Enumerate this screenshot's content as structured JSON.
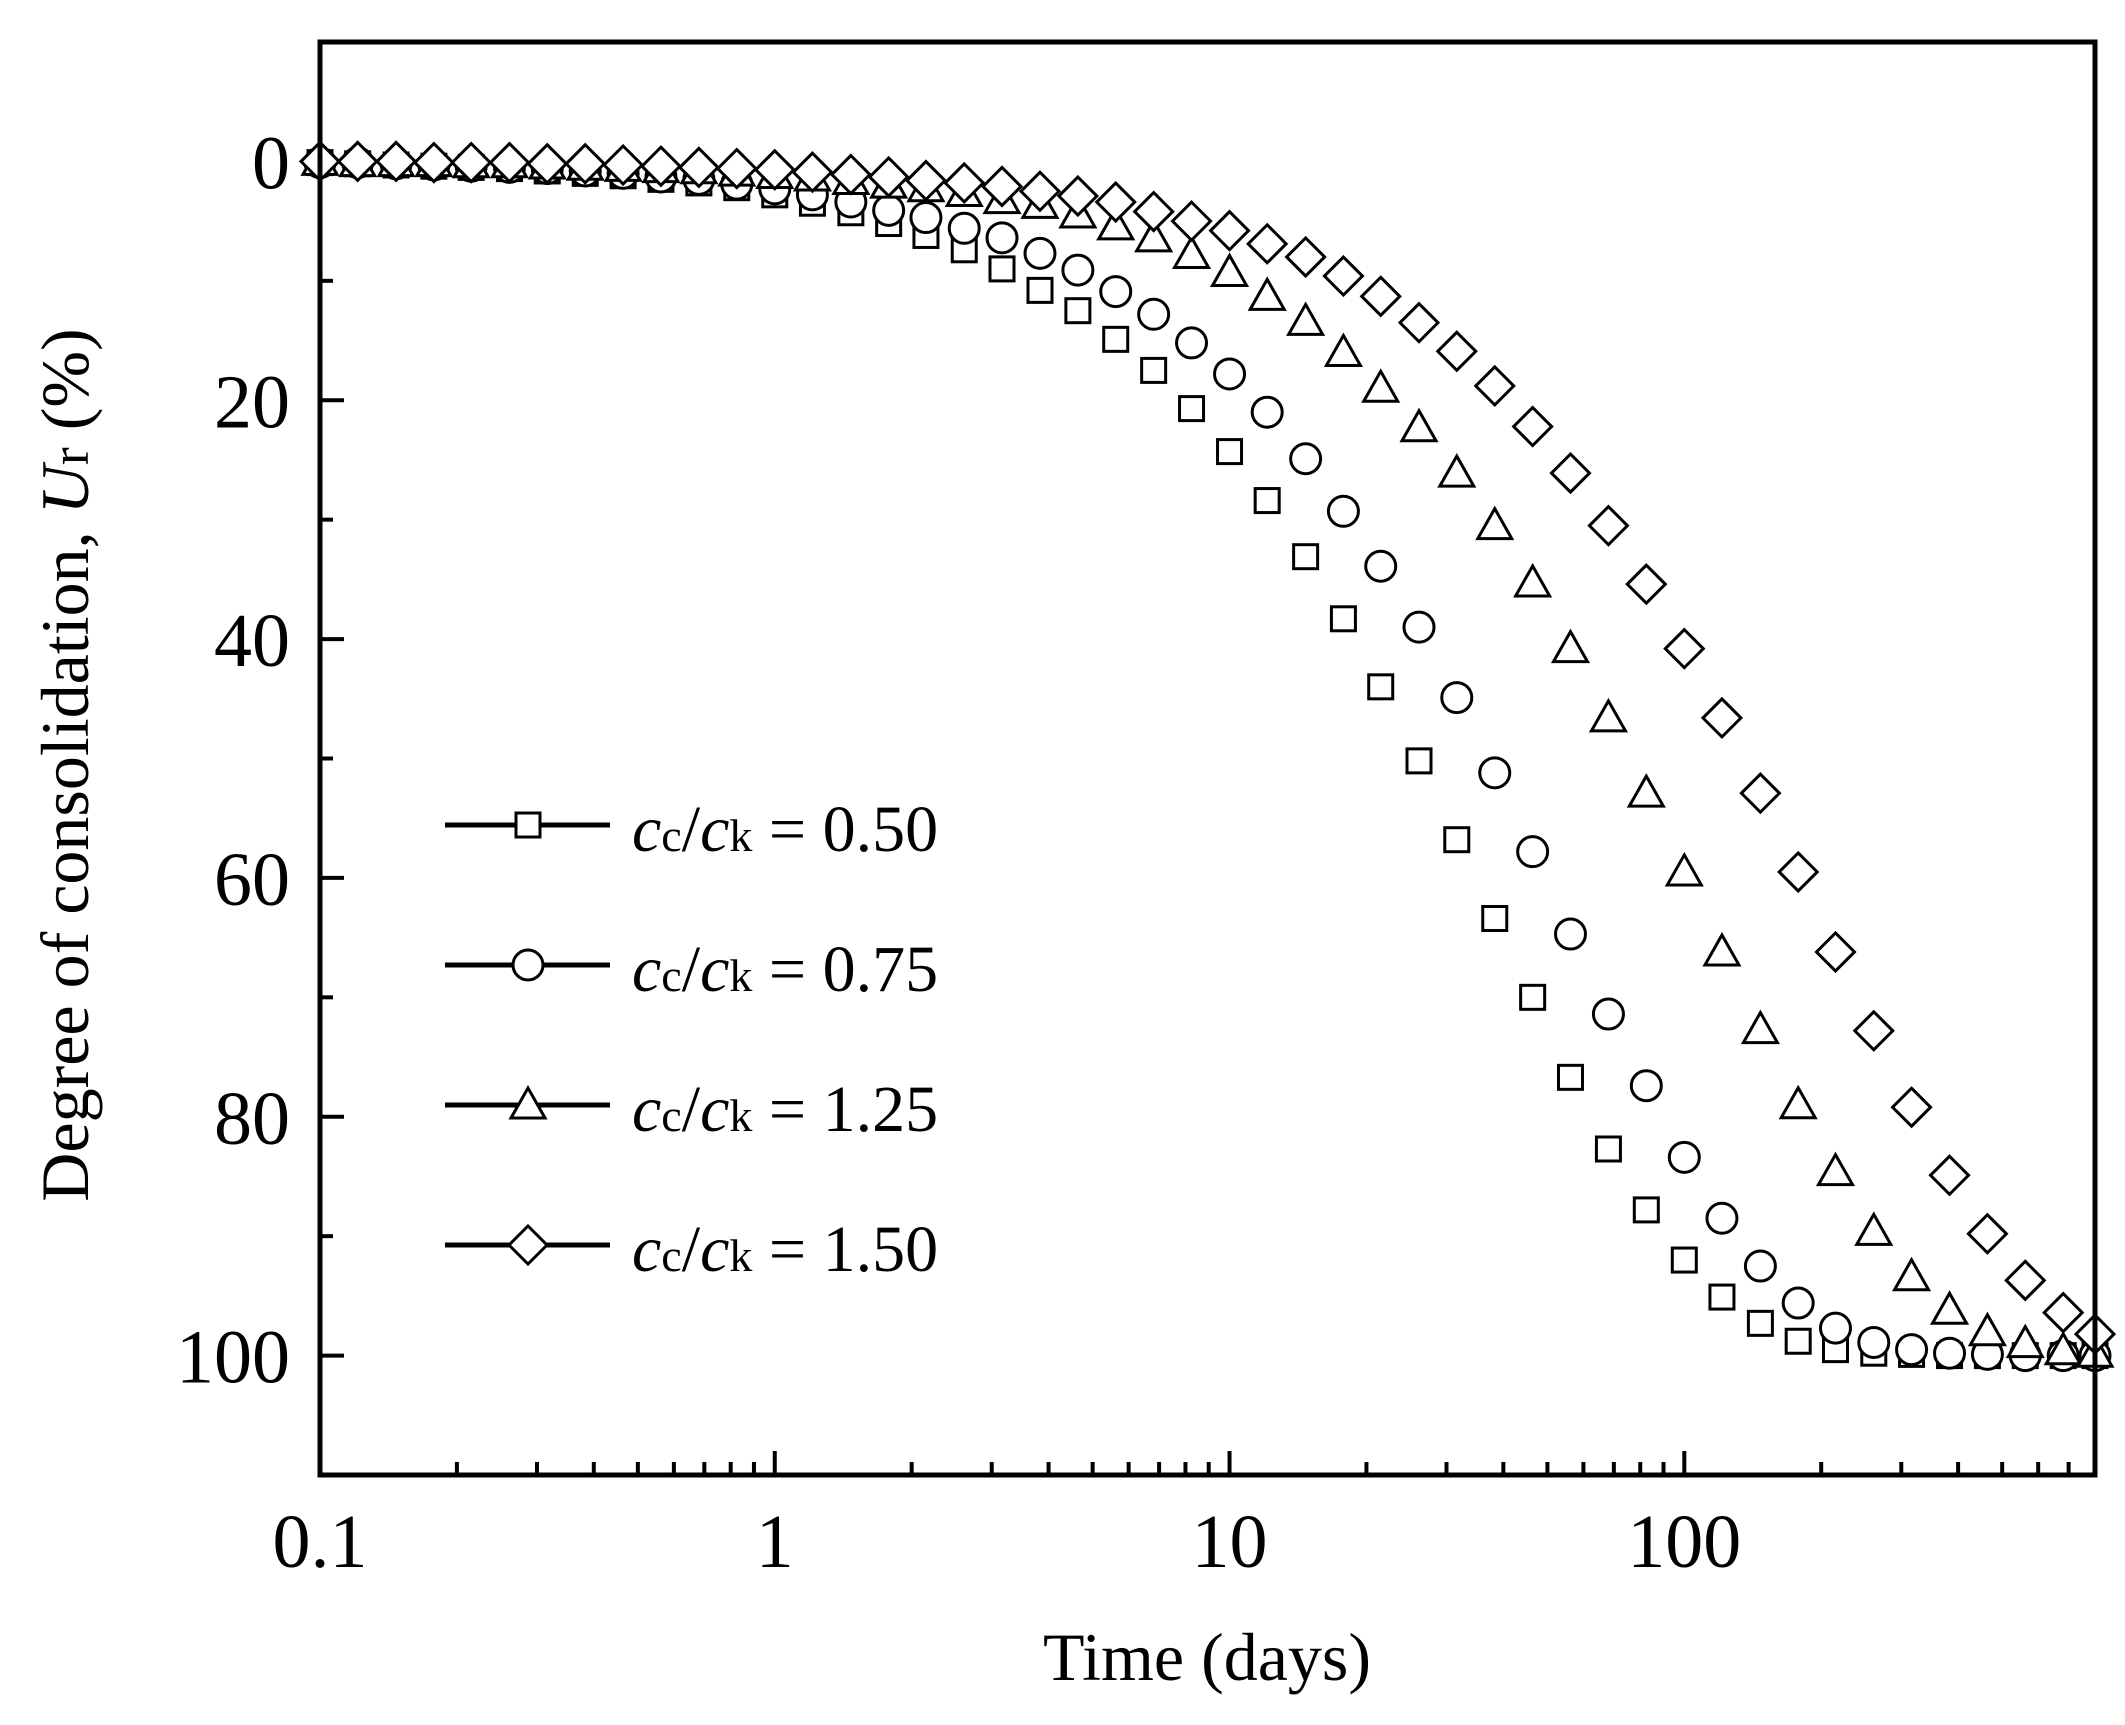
{
  "chart_data": {
    "type": "scatter",
    "title": "",
    "xlabel": "Time (days)",
    "ylabel": {
      "prefix": "Degree of  consolidation, ",
      "italic": "U",
      "sub": "r",
      "suffix": " (%)"
    },
    "xscale": "log",
    "xlim": [
      0.1,
      800
    ],
    "ylim": [
      110,
      -10
    ],
    "y_reversed": true,
    "xticks": [
      {
        "value": 0.1,
        "label": "0.1"
      },
      {
        "value": 1,
        "label": "1"
      },
      {
        "value": 10,
        "label": "10"
      },
      {
        "value": 100,
        "label": "100"
      }
    ],
    "yticks": [
      {
        "value": 0,
        "label": "0"
      },
      {
        "value": 20,
        "label": "20"
      },
      {
        "value": 40,
        "label": "40"
      },
      {
        "value": 60,
        "label": "60"
      },
      {
        "value": 80,
        "label": "80"
      },
      {
        "value": 100,
        "label": "100"
      }
    ],
    "legend_position": "center-left",
    "x": [
      0.1,
      0.121,
      0.147,
      0.178,
      0.215,
      0.261,
      0.316,
      0.383,
      0.464,
      0.562,
      0.681,
      0.825,
      1.0,
      1.21,
      1.47,
      1.78,
      2.15,
      2.61,
      3.16,
      3.83,
      4.64,
      5.62,
      6.81,
      8.25,
      10.0,
      12.1,
      14.7,
      17.8,
      21.5,
      26.1,
      31.6,
      38.3,
      46.4,
      56.2,
      68.1,
      82.5,
      100,
      121,
      147,
      178,
      215,
      261,
      316,
      383,
      464,
      562,
      681,
      800
    ],
    "series": [
      {
        "name": "cc/ck = 0.50",
        "label_main": "c",
        "label_sub": "c",
        "label_main2": "c",
        "label_sub2": "k",
        "label_value": " = 0.50",
        "marker": "square",
        "values": [
          0.1,
          0.2,
          0.3,
          0.4,
          0.5,
          0.6,
          0.8,
          1.0,
          1.2,
          1.5,
          1.8,
          2.2,
          2.8,
          3.5,
          4.3,
          5.2,
          6.2,
          7.4,
          9.0,
          10.8,
          12.5,
          14.9,
          17.5,
          20.7,
          24.3,
          28.4,
          33.1,
          38.3,
          44.0,
          50.2,
          56.8,
          63.4,
          70.0,
          76.7,
          82.7,
          87.8,
          92.0,
          95.1,
          97.3,
          98.8,
          99.5,
          99.8,
          99.9,
          100,
          100,
          100,
          100,
          100
        ]
      },
      {
        "name": "cc/ck = 0.75",
        "label_main": "c",
        "label_sub": "c",
        "label_main2": "c",
        "label_sub2": "k",
        "label_value": " = 0.75",
        "marker": "circle",
        "values": [
          0.1,
          0.1,
          0.2,
          0.3,
          0.4,
          0.5,
          0.6,
          0.8,
          1.0,
          1.3,
          1.5,
          1.9,
          2.3,
          2.8,
          3.4,
          4.1,
          4.7,
          5.6,
          6.4,
          7.7,
          9.1,
          10.9,
          12.8,
          15.2,
          17.8,
          21.0,
          24.9,
          29.3,
          33.9,
          39.0,
          44.9,
          51.2,
          57.8,
          64.7,
          71.4,
          77.4,
          83.4,
          88.5,
          92.5,
          95.6,
          97.7,
          98.9,
          99.5,
          99.8,
          99.9,
          100,
          100,
          100
        ]
      },
      {
        "name": "cc/ck = 1.25",
        "label_main": "c",
        "label_sub": "c",
        "label_main2": "c",
        "label_sub2": "k",
        "label_value": " = 1.25",
        "marker": "triangle",
        "values": [
          0.0,
          0.1,
          0.1,
          0.1,
          0.2,
          0.2,
          0.3,
          0.4,
          0.5,
          0.6,
          0.7,
          0.9,
          1.1,
          1.3,
          1.6,
          1.9,
          2.2,
          2.6,
          3.2,
          3.6,
          4.4,
          5.4,
          6.4,
          7.8,
          9.3,
          11.3,
          13.4,
          16.0,
          19.0,
          22.3,
          26.1,
          30.5,
          35.3,
          40.8,
          46.6,
          52.9,
          59.5,
          66.2,
          72.7,
          79.0,
          84.6,
          89.6,
          93.4,
          96.2,
          98.0,
          99.0,
          99.6,
          99.8
        ]
      },
      {
        "name": "cc/ck = 1.50",
        "label_main": "c",
        "label_sub": "c",
        "label_main2": "c",
        "label_sub2": "k",
        "label_value": " = 1.50",
        "marker": "diamond",
        "values": [
          0.0,
          0.0,
          0.0,
          0.1,
          0.1,
          0.1,
          0.2,
          0.2,
          0.3,
          0.4,
          0.5,
          0.6,
          0.7,
          0.9,
          1.1,
          1.3,
          1.6,
          1.8,
          2.1,
          2.5,
          2.9,
          3.4,
          4.2,
          5.0,
          5.8,
          6.9,
          8.0,
          9.6,
          11.3,
          13.5,
          15.9,
          18.8,
          22.2,
          26.1,
          30.5,
          35.4,
          40.8,
          46.6,
          52.9,
          59.5,
          66.2,
          72.8,
          79.2,
          84.9,
          89.8,
          93.7,
          96.4,
          98.2
        ]
      }
    ]
  }
}
